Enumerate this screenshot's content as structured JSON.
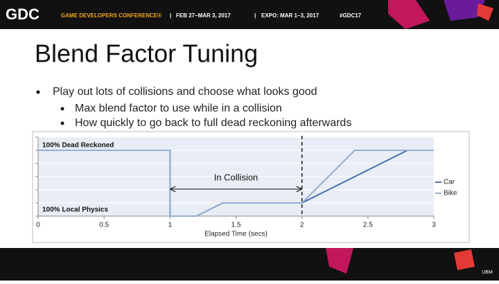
{
  "header": {
    "logo": "GDC",
    "conference": "GAME DEVELOPERS CONFERENCE®",
    "dates": "FEB 27–MAR 3, 2017",
    "expo": "EXPO: MAR 1–3, 2017",
    "hashtag": "#GDC17"
  },
  "slide": {
    "title": "Blend Factor Tuning",
    "bullets": [
      "Play out lots of collisions and choose what looks good",
      "Max blend factor to use while in a collision",
      "How quickly to go back to full dead reckoning afterwards"
    ]
  },
  "footer": {
    "logo": "UBM"
  },
  "chart_data": {
    "type": "line",
    "xlabel": "Elapsed Time (secs)",
    "xlim": [
      0,
      3
    ],
    "xticks": [
      0,
      0.5,
      1,
      1.5,
      2,
      2.5,
      3
    ],
    "ylim": [
      0,
      1.2
    ],
    "yticks": [
      0,
      0.2,
      0.4,
      0.6,
      0.8,
      1,
      1.2
    ],
    "grid": true,
    "series": [
      {
        "name": "Car",
        "color": "#4a6fa5",
        "x": [
          0,
          1,
          1,
          1.2,
          1.4,
          2,
          2.8,
          3
        ],
        "values": [
          1,
          1,
          0,
          0,
          0.2,
          0.2,
          1,
          1
        ]
      },
      {
        "name": "Bike",
        "color": "#94aed4",
        "x": [
          0,
          1,
          1,
          1.2,
          1.4,
          2,
          2.4,
          3
        ],
        "values": [
          1,
          1,
          0,
          0,
          0.2,
          0.2,
          1,
          1
        ]
      }
    ],
    "legend": "right",
    "annotations": {
      "top_label": "100% Dead Reckoned",
      "bottom_label": "100% Local Physics",
      "collision_label": "In Collision",
      "collision_span": [
        1,
        2
      ],
      "collision_line": 2
    }
  }
}
